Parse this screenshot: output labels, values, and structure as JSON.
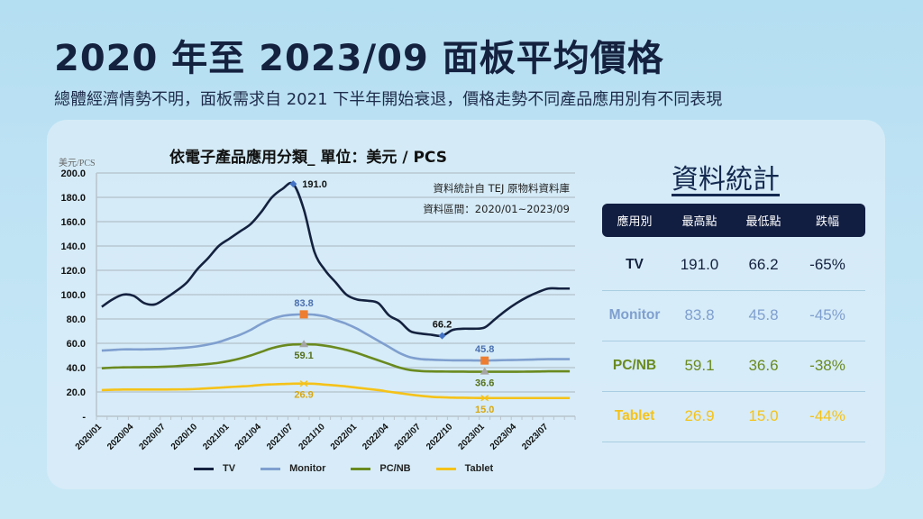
{
  "header": {
    "title": "2020 年至 2023/09 面板平均價格",
    "subtitle": "總體經濟情勢不明，面板需求自 2021 下半年開始衰退，價格走勢不同產品應用別有不同表現"
  },
  "chart": {
    "title": "依電子產品應用分類_ 單位：美元 / PCS",
    "unit_label": "美元/PCS",
    "source_note": "資料統計自 TEJ 原物料資料庫",
    "range_note": "資料區間：2020/01~2023/09"
  },
  "chart_data": {
    "type": "line",
    "title": "依電子產品應用分類_ 單位：美元 / PCS",
    "xlabel": "",
    "ylabel": "美元/PCS",
    "ylim": [
      0,
      200
    ],
    "yticks": [
      "-",
      "20.0",
      "40.0",
      "60.0",
      "80.0",
      "100.0",
      "120.0",
      "140.0",
      "160.0",
      "180.0",
      "200.0"
    ],
    "grid": true,
    "legend_position": "bottom",
    "x_tick_labels": [
      "2020/01",
      "2020/04",
      "2020/07",
      "2020/10",
      "2021/01",
      "2021/04",
      "2021/07",
      "2021/10",
      "2022/01",
      "2022/04",
      "2022/07",
      "2022/10",
      "2023/01",
      "2023/04",
      "2023/07"
    ],
    "x": [
      "2020/01",
      "2020/02",
      "2020/03",
      "2020/04",
      "2020/05",
      "2020/06",
      "2020/07",
      "2020/08",
      "2020/09",
      "2020/10",
      "2020/11",
      "2020/12",
      "2021/01",
      "2021/02",
      "2021/03",
      "2021/04",
      "2021/05",
      "2021/06",
      "2021/07",
      "2021/08",
      "2021/09",
      "2021/10",
      "2021/11",
      "2021/12",
      "2022/01",
      "2022/02",
      "2022/03",
      "2022/04",
      "2022/05",
      "2022/06",
      "2022/07",
      "2022/08",
      "2022/09",
      "2022/10",
      "2022/11",
      "2022/12",
      "2023/01",
      "2023/02",
      "2023/03",
      "2023/04",
      "2023/05",
      "2023/06",
      "2023/07",
      "2023/08",
      "2023/09"
    ],
    "series": [
      {
        "name": "TV",
        "color": "#14213f",
        "values": [
          90,
          96,
          100,
          99,
          93,
          92,
          97,
          103,
          110,
          121,
          130,
          140,
          146,
          152,
          158,
          168,
          180,
          187,
          191.0,
          170,
          135,
          120,
          110,
          100,
          96,
          95,
          93,
          83,
          78,
          70,
          68,
          67,
          66.2,
          71,
          72,
          72,
          73,
          80,
          87,
          93,
          98,
          102,
          105,
          105,
          105
        ]
      },
      {
        "name": "Monitor",
        "color": "#7f9fcf",
        "values": [
          54,
          54.5,
          55,
          55,
          55,
          55.2,
          55.5,
          56,
          56.5,
          57.5,
          59,
          61,
          64,
          67,
          71,
          76,
          80,
          82.5,
          83.5,
          83.8,
          83.5,
          82,
          79,
          76,
          72,
          67,
          62,
          57,
          52,
          48.5,
          47,
          46.5,
          46.2,
          46,
          46,
          45.9,
          45.8,
          46,
          46.2,
          46.3,
          46.5,
          46.8,
          47,
          47,
          47
        ]
      },
      {
        "name": "PC/NB",
        "color": "#6a8a1f",
        "values": [
          39.5,
          40,
          40.2,
          40.3,
          40.4,
          40.5,
          40.8,
          41.2,
          41.8,
          42.3,
          43,
          44,
          45.5,
          47.5,
          50,
          53,
          56,
          58,
          59,
          59.1,
          59,
          58,
          56.5,
          54.5,
          52,
          49,
          46,
          43,
          40,
          38,
          37.2,
          36.9,
          36.8,
          36.7,
          36.7,
          36.6,
          36.6,
          36.6,
          36.6,
          36.6,
          36.7,
          36.8,
          37,
          37,
          37
        ]
      },
      {
        "name": "Tablet",
        "color": "#f5c219",
        "values": [
          21.5,
          21.8,
          22,
          22,
          22,
          22,
          22,
          22.1,
          22.2,
          22.5,
          23,
          23.5,
          24,
          24.5,
          25,
          25.8,
          26.2,
          26.5,
          26.8,
          26.9,
          26.7,
          26,
          25.3,
          24.5,
          23.5,
          22.5,
          21.5,
          20.2,
          19,
          17.8,
          16.8,
          16,
          15.6,
          15.3,
          15.2,
          15.1,
          15.0,
          15,
          15,
          15,
          15,
          15,
          15,
          15,
          15
        ]
      }
    ],
    "annotations": [
      {
        "series": "TV",
        "x": "2021/07",
        "label": "191.0",
        "type": "max"
      },
      {
        "series": "TV",
        "x": "2022/09",
        "label": "66.2",
        "type": "min"
      },
      {
        "series": "Monitor",
        "x": "2021/08",
        "label": "83.8",
        "type": "max"
      },
      {
        "series": "Monitor",
        "x": "2023/01",
        "label": "45.8",
        "type": "min"
      },
      {
        "series": "PC/NB",
        "x": "2021/08",
        "label": "59.1",
        "type": "max"
      },
      {
        "series": "PC/NB",
        "x": "2023/01",
        "label": "36.6",
        "type": "min"
      },
      {
        "series": "Tablet",
        "x": "2021/08",
        "label": "26.9",
        "type": "max"
      },
      {
        "series": "Tablet",
        "x": "2023/01",
        "label": "15.0",
        "type": "min"
      }
    ]
  },
  "stats": {
    "title": "資料統計",
    "headers": [
      "應用別",
      "最高點",
      "最低點",
      "跌幅"
    ],
    "rows": [
      {
        "name": "TV",
        "high": "191.0",
        "low": "66.2",
        "drop": "-65%",
        "color": "#14213f"
      },
      {
        "name": "Monitor",
        "high": "83.8",
        "low": "45.8",
        "drop": "-45%",
        "color": "#7f9fcf"
      },
      {
        "name": "PC/NB",
        "high": "59.1",
        "low": "36.6",
        "drop": "-38%",
        "color": "#6a8a1f"
      },
      {
        "name": "Tablet",
        "high": "26.9",
        "low": "15.0",
        "drop": "-44%",
        "color": "#f5c219"
      }
    ]
  },
  "legend": [
    "TV",
    "Monitor",
    "PC/NB",
    "Tablet"
  ]
}
